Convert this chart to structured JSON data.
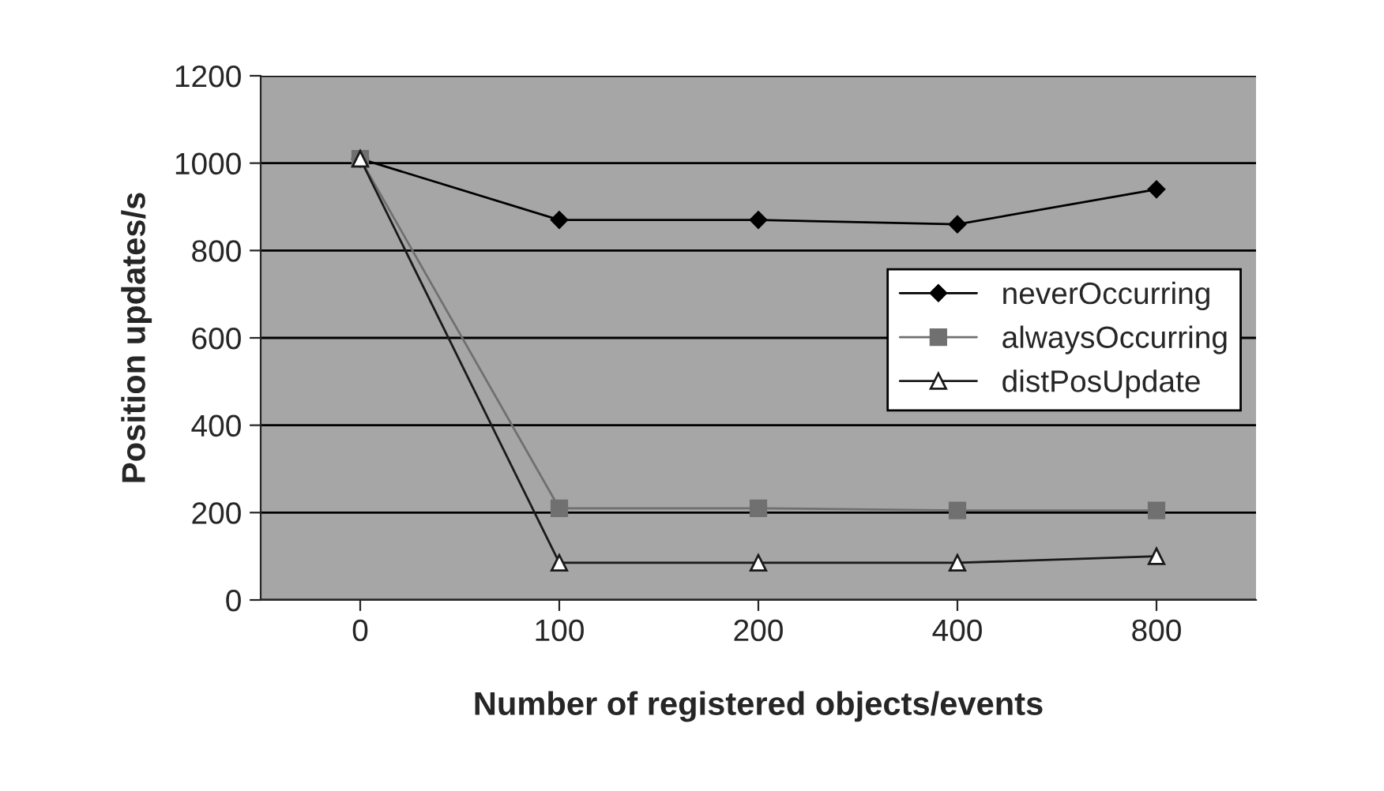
{
  "chart_data": {
    "type": "line",
    "xlabel": "Number of registered objects/events",
    "ylabel": "Position updates/s",
    "categories": [
      "0",
      "100",
      "200",
      "400",
      "800"
    ],
    "series": [
      {
        "name": "neverOccurring",
        "color": "#000000",
        "marker": "diamond",
        "values": [
          1010,
          870,
          870,
          860,
          940
        ]
      },
      {
        "name": "alwaysOccurring",
        "color": "#707070",
        "marker": "square",
        "values": [
          1010,
          210,
          210,
          205,
          205
        ]
      },
      {
        "name": "distPosUpdate",
        "color": "#1a1a1a",
        "marker": "triangle",
        "values": [
          1010,
          85,
          85,
          85,
          100
        ]
      }
    ],
    "ylim": [
      0,
      1200
    ],
    "yticks": [
      0,
      200,
      400,
      600,
      800,
      1000,
      1200
    ],
    "grid": "y",
    "legend": "right"
  }
}
